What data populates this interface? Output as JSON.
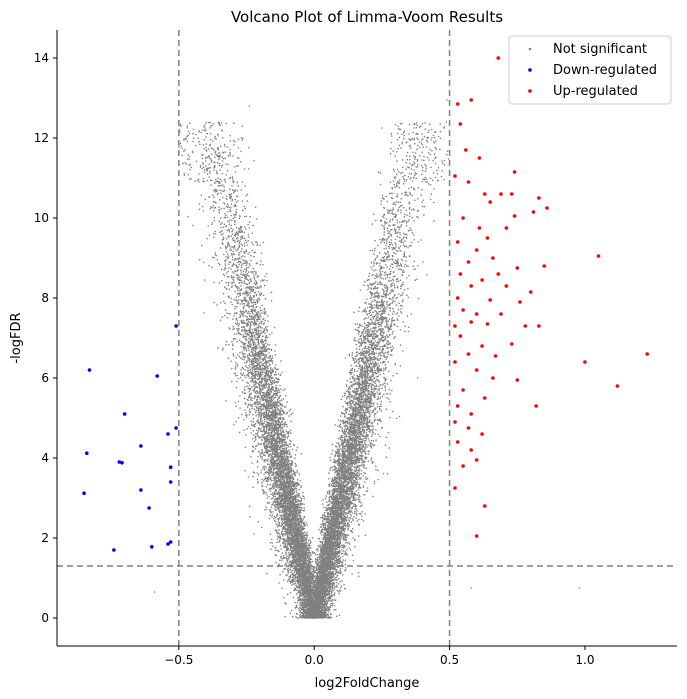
{
  "chart_data": {
    "type": "scatter",
    "title": "Volcano Plot of Limma-Voom Results",
    "xlabel": "log2FoldChange",
    "ylabel": "-logFDR",
    "xlim": [
      -0.95,
      1.34
    ],
    "ylim": [
      -0.7,
      14.7
    ],
    "x_ticks": [
      -0.5,
      0.0,
      0.5,
      1.0
    ],
    "x_tick_labels": [
      "−0.5",
      "0.0",
      "0.5",
      "1.0"
    ],
    "y_ticks": [
      0,
      2,
      4,
      6,
      8,
      10,
      12,
      14
    ],
    "y_tick_labels": [
      "0",
      "2",
      "4",
      "6",
      "8",
      "10",
      "12",
      "14"
    ],
    "grid": false,
    "legend": "top-right",
    "threshold_lines": {
      "x": [
        -0.5,
        0.5
      ],
      "y": 1.3,
      "style": "dashed",
      "color": "#808080"
    },
    "series": [
      {
        "name": "Not significant",
        "color": "#808080",
        "distribution": "symmetric volcano cloud of roughly 15000 genes with |log2FoldChange| below 0.5, ranging from 0 at x=0 up to about 12 near |x|=0.25-0.5",
        "values": [
          [
            0.58,
            0.75
          ],
          [
            0.98,
            0.75
          ],
          [
            -0.59,
            0.65
          ],
          [
            -0.24,
            12.8
          ],
          [
            0.49,
            12.95
          ],
          [
            0.25,
            12.25
          ],
          [
            0.35,
            12.1
          ],
          [
            -0.28,
            11.75
          ],
          [
            -0.3,
            11.55
          ]
        ]
      },
      {
        "name": "Down-regulated",
        "color": "#0000ff",
        "values": [
          [
            -0.83,
            6.2
          ],
          [
            -0.85,
            3.12
          ],
          [
            -0.84,
            4.12
          ],
          [
            -0.74,
            1.7
          ],
          [
            -0.7,
            5.1
          ],
          [
            -0.72,
            3.9
          ],
          [
            -0.71,
            3.88
          ],
          [
            -0.64,
            4.3
          ],
          [
            -0.64,
            3.2
          ],
          [
            -0.61,
            2.75
          ],
          [
            -0.6,
            1.78
          ],
          [
            -0.58,
            6.05
          ],
          [
            -0.54,
            4.6
          ],
          [
            -0.53,
            3.77
          ],
          [
            -0.53,
            3.4
          ],
          [
            -0.54,
            1.85
          ],
          [
            -0.53,
            1.9
          ],
          [
            -0.51,
            4.75
          ],
          [
            -0.51,
            7.3
          ]
        ]
      },
      {
        "name": "Up-regulated",
        "color": "#ff0000",
        "values": [
          [
            0.68,
            14.0
          ],
          [
            0.53,
            12.85
          ],
          [
            0.58,
            12.95
          ],
          [
            0.54,
            12.35
          ],
          [
            0.56,
            11.7
          ],
          [
            0.61,
            11.5
          ],
          [
            0.74,
            11.15
          ],
          [
            0.52,
            11.05
          ],
          [
            0.57,
            10.9
          ],
          [
            0.63,
            10.6
          ],
          [
            0.69,
            10.6
          ],
          [
            0.73,
            10.6
          ],
          [
            0.65,
            10.4
          ],
          [
            0.83,
            10.5
          ],
          [
            0.86,
            10.25
          ],
          [
            0.74,
            10.05
          ],
          [
            0.81,
            10.15
          ],
          [
            0.55,
            10.0
          ],
          [
            0.61,
            9.75
          ],
          [
            0.71,
            9.75
          ],
          [
            0.64,
            9.5
          ],
          [
            0.53,
            9.4
          ],
          [
            0.6,
            9.2
          ],
          [
            0.66,
            9.0
          ],
          [
            0.57,
            8.9
          ],
          [
            0.75,
            8.75
          ],
          [
            0.85,
            8.8
          ],
          [
            0.54,
            8.6
          ],
          [
            0.62,
            8.45
          ],
          [
            0.68,
            8.6
          ],
          [
            0.58,
            8.3
          ],
          [
            0.71,
            8.3
          ],
          [
            0.8,
            8.15
          ],
          [
            0.53,
            8.0
          ],
          [
            0.65,
            7.95
          ],
          [
            0.76,
            7.9
          ],
          [
            0.55,
            7.7
          ],
          [
            0.6,
            7.6
          ],
          [
            0.69,
            7.6
          ],
          [
            0.52,
            7.3
          ],
          [
            0.58,
            7.4
          ],
          [
            0.64,
            7.35
          ],
          [
            0.78,
            7.3
          ],
          [
            0.83,
            7.3
          ],
          [
            0.54,
            7.05
          ],
          [
            0.62,
            6.8
          ],
          [
            0.57,
            6.6
          ],
          [
            0.67,
            6.55
          ],
          [
            0.73,
            6.85
          ],
          [
            0.52,
            6.4
          ],
          [
            0.6,
            6.2
          ],
          [
            0.66,
            6.0
          ],
          [
            0.75,
            5.95
          ],
          [
            0.55,
            5.7
          ],
          [
            0.63,
            5.5
          ],
          [
            0.53,
            5.3
          ],
          [
            0.82,
            5.3
          ],
          [
            0.58,
            5.1
          ],
          [
            0.52,
            4.9
          ],
          [
            0.57,
            4.75
          ],
          [
            0.62,
            4.6
          ],
          [
            0.53,
            4.4
          ],
          [
            0.58,
            4.2
          ],
          [
            0.6,
            3.95
          ],
          [
            0.55,
            3.8
          ],
          [
            0.52,
            3.25
          ],
          [
            0.63,
            2.8
          ],
          [
            0.6,
            2.05
          ],
          [
            1.05,
            9.05
          ],
          [
            1.0,
            6.4
          ],
          [
            1.12,
            5.8
          ],
          [
            1.23,
            6.6
          ]
        ]
      }
    ]
  }
}
